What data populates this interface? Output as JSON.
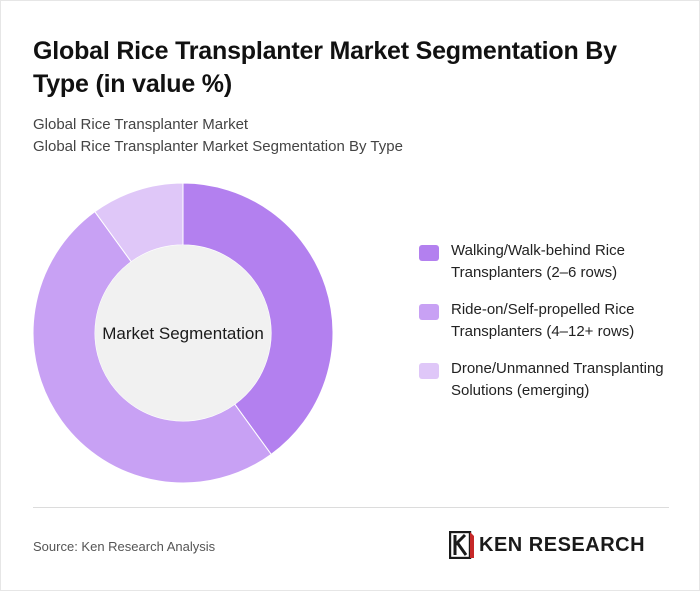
{
  "title": "Global Rice Transplanter Market Segmentation By Type (in value %)",
  "breadcrumb": [
    "Global Rice Transplanter Market",
    "Global Rice Transplanter Market Segmentation By Type"
  ],
  "center_label": "Market Segmentation",
  "source": "Source: Ken Research Analysis",
  "logo": {
    "text": "KEN RESEARCH"
  },
  "chart_data": {
    "type": "pie",
    "variant": "donut",
    "title": "Global Rice Transplanter Market Segmentation By Type (in value %)",
    "center_label": "Market Segmentation",
    "legend_position": "right",
    "series": [
      {
        "name": "Walking/Walk-behind Rice Transplanters (2–6 rows)",
        "value": 40,
        "color": "#b380ef"
      },
      {
        "name": "Ride-on/Self-propelled Rice Transplanters (4–12+ rows)",
        "value": 50,
        "color": "#c8a1f4"
      },
      {
        "name": "Drone/Unmanned Transplanting Solutions (emerging)",
        "value": 10,
        "color": "#dfc7f8"
      }
    ]
  }
}
